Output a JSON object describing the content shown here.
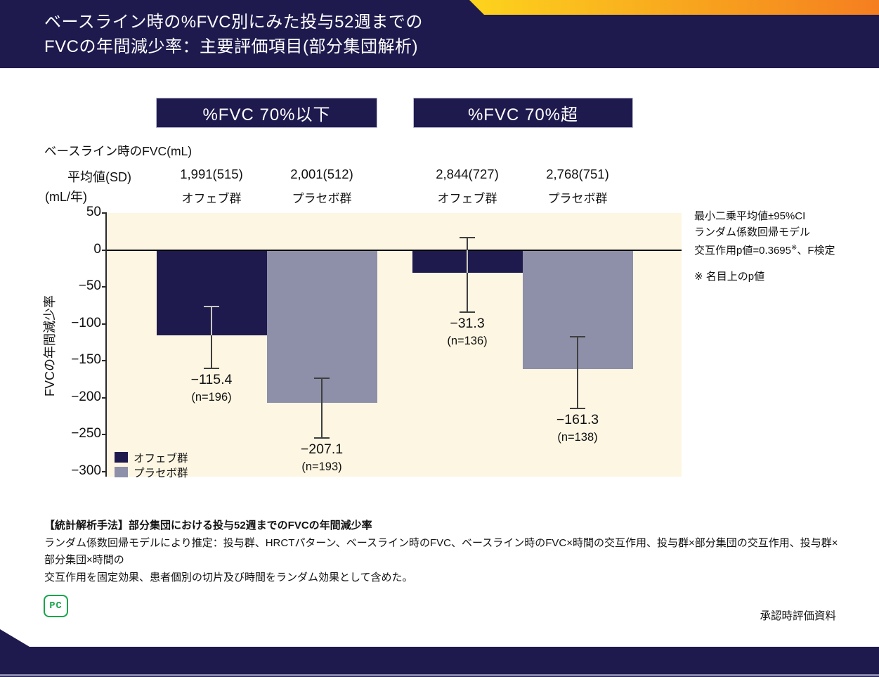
{
  "header": {
    "title_line1": "ベースライン時の%FVC別にみた投与52週までの",
    "title_line2": "FVCの年間減少率：主要評価項目(部分集団解析)"
  },
  "group_headers": [
    {
      "label": "%FVC 70%以下"
    },
    {
      "label": "%FVC 70%超"
    }
  ],
  "baseline": {
    "label": "ベースライン時のFVC(mL)",
    "row_label_line1": "平均値(SD)",
    "row_label_line2": "(mL/年)",
    "columns": [
      {
        "value": "1,991(515)",
        "group": "オフェブ群"
      },
      {
        "value": "2,001(512)",
        "group": "プラセボ群"
      },
      {
        "value": "2,844(727)",
        "group": "オフェブ群"
      },
      {
        "value": "2,768(751)",
        "group": "プラセボ群"
      }
    ]
  },
  "chart_data": {
    "type": "bar",
    "title": "",
    "xlabel": "",
    "ylabel": "FVCの年間減少率",
    "ylim": [
      -300,
      50
    ],
    "ytick_values": [
      50,
      0,
      -50,
      -100,
      -150,
      -200,
      -250,
      -300
    ],
    "ytick_labels": [
      "50",
      "0",
      "−50",
      "−100",
      "−150",
      "−200",
      "−250",
      "−300"
    ],
    "groups": [
      "%FVC 70%以下",
      "%FVC 70%超"
    ],
    "grid": false,
    "legend_position": "inside-bottom-left",
    "plot_bg": "#fdf6e3",
    "series": [
      {
        "name": "オフェブ群",
        "color": "#1e1a4e",
        "values": [
          -115.4,
          -31.3
        ],
        "value_labels": [
          "−115.4",
          "−31.3"
        ],
        "n_labels": [
          "(n=196)",
          "(n=136)"
        ],
        "ci_estimated": [
          [
            -77,
            -160
          ],
          [
            17,
            -84
          ]
        ]
      },
      {
        "name": "プラセボ群",
        "color": "#8e8fa9",
        "values": [
          -207.1,
          -161.3
        ],
        "value_labels": [
          "−207.1",
          "−161.3"
        ],
        "n_labels": [
          "(n=193)",
          "(n=138)"
        ],
        "ci_estimated": [
          [
            -174,
            -255
          ],
          [
            -118,
            -215
          ]
        ]
      }
    ]
  },
  "annotation": {
    "line1": "最小二乗平均値±95%CI",
    "line2": "ランダム係数回帰モデル",
    "line3_pre": "交互作用p値=0.3695",
    "line3_sup": "※",
    "line3_post": "、F検定",
    "note": "※ 名目上のp値"
  },
  "footnote": {
    "heading": "【統計解析手法】部分集団における投与52週までのFVCの年間減少率",
    "body_line1": "ランダム係数回帰モデルにより推定：投与群、HRCTパターン、ベースライン時のFVC、ベースライン時のFVC×時間の交互作用、投与群×部分集団の交互作用、投与群×部分集団×時間の",
    "body_line2": "交互作用を固定効果、患者個別の切片及び時間をランダム効果として含めた。"
  },
  "footer": {
    "logo_text": "PC",
    "approval": "承認時評価資料"
  },
  "colors": {
    "navy": "#1e1a4e",
    "bar_ofev": "#1e1a4e",
    "bar_placebo": "#8e8fa9",
    "plot_bg": "#fdf6e3",
    "accent_yellow": "#fdd41d",
    "accent_orange": "#f57e20",
    "logo_green": "#17a54a",
    "bottom_line": "#8a8aad"
  }
}
